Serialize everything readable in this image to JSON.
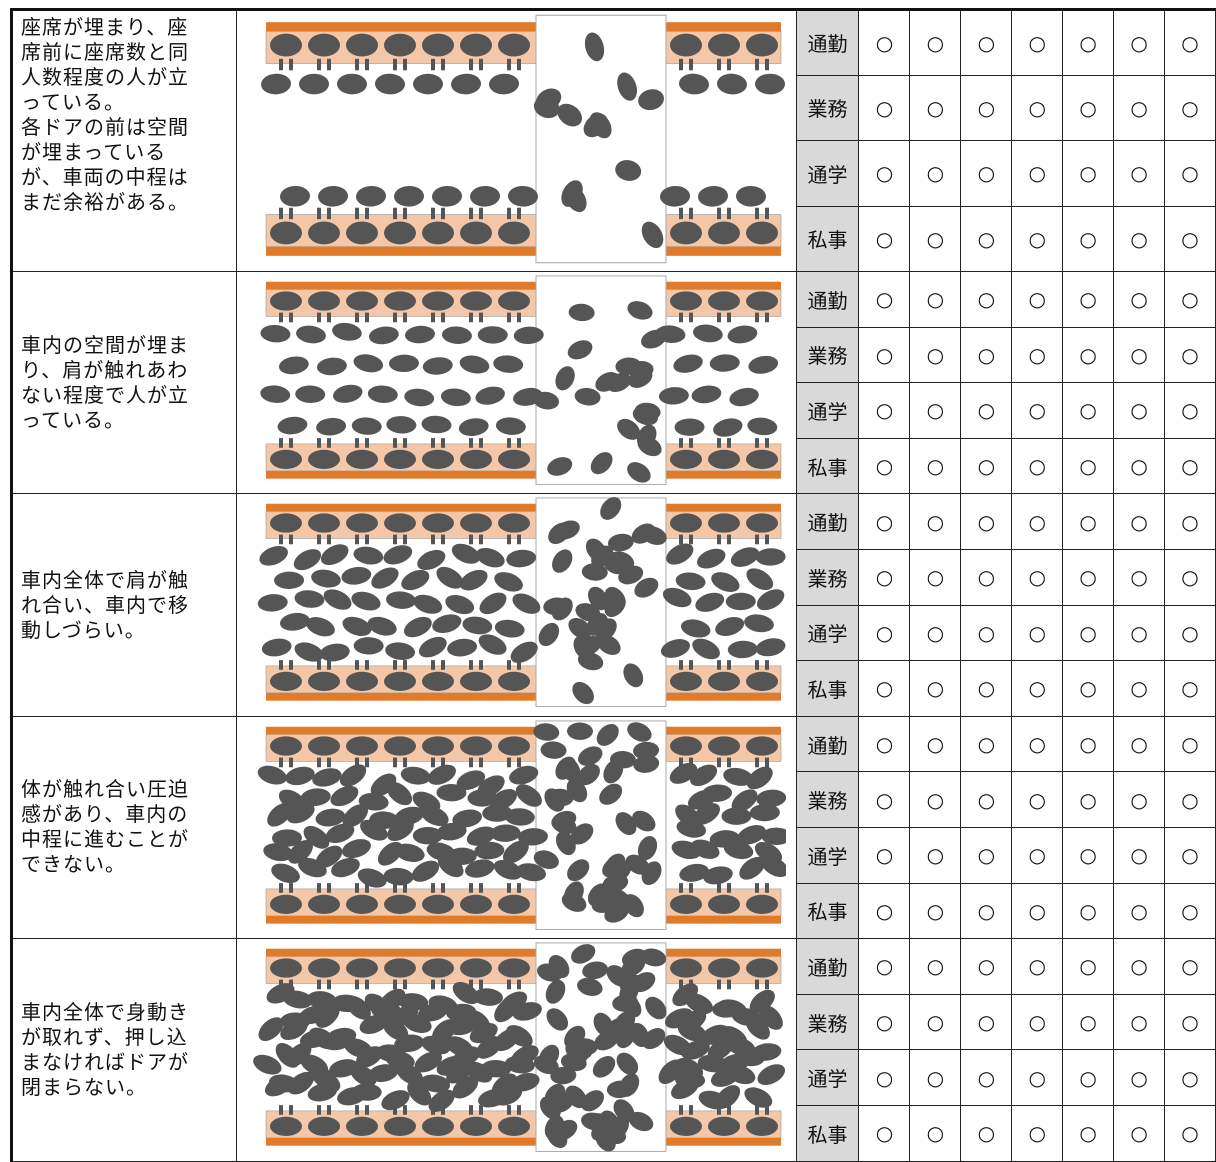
{
  "groups": [
    {
      "lines": [
        "座席が埋まり、座",
        "席前に座席数と同",
        "人数程度の人が立",
        "っている。",
        "各ドアの前は空間",
        "が埋まっている",
        "が、車両の中程は",
        "まだ余裕がある。"
      ],
      "purposes": [
        "通勤",
        "業務",
        "通学",
        "私事"
      ],
      "marks": [
        [
          "○",
          "○",
          "○",
          "○",
          "○",
          "○",
          "○"
        ],
        [
          "○",
          "○",
          "○",
          "○",
          "○",
          "○",
          "○"
        ],
        [
          "○",
          "○",
          "○",
          "○",
          "○",
          "○",
          "○"
        ],
        [
          "○",
          "○",
          "○",
          "○",
          "○",
          "○",
          "○"
        ]
      ]
    },
    {
      "lines": [
        "車内の空間が埋ま",
        "り、肩が触れあわ",
        "ない程度で人が立",
        "っている。"
      ],
      "purposes": [
        "通勤",
        "業務",
        "通学",
        "私事"
      ],
      "marks": [
        [
          "○",
          "○",
          "○",
          "○",
          "○",
          "○",
          "○"
        ],
        [
          "○",
          "○",
          "○",
          "○",
          "○",
          "○",
          "○"
        ],
        [
          "○",
          "○",
          "○",
          "○",
          "○",
          "○",
          "○"
        ],
        [
          "○",
          "○",
          "○",
          "○",
          "○",
          "○",
          "○"
        ]
      ]
    },
    {
      "lines": [
        "車内全体で肩が触",
        "れ合い、車内で移",
        "動しづらい。"
      ],
      "purposes": [
        "通勤",
        "業務",
        "通学",
        "私事"
      ],
      "marks": [
        [
          "○",
          "○",
          "○",
          "○",
          "○",
          "○",
          "○"
        ],
        [
          "○",
          "○",
          "○",
          "○",
          "○",
          "○",
          "○"
        ],
        [
          "○",
          "○",
          "○",
          "○",
          "○",
          "○",
          "○"
        ],
        [
          "○",
          "○",
          "○",
          "○",
          "○",
          "○",
          "○"
        ]
      ]
    },
    {
      "lines": [
        "体が触れ合い圧迫",
        "感があり、車内の",
        "中程に進むことが",
        "できない。"
      ],
      "purposes": [
        "通勤",
        "業務",
        "通学",
        "私事"
      ],
      "marks": [
        [
          "○",
          "○",
          "○",
          "○",
          "○",
          "○",
          "○"
        ],
        [
          "○",
          "○",
          "○",
          "○",
          "○",
          "○",
          "○"
        ],
        [
          "○",
          "○",
          "○",
          "○",
          "○",
          "○",
          "○"
        ],
        [
          "○",
          "○",
          "○",
          "○",
          "○",
          "○",
          "○"
        ]
      ]
    },
    {
      "lines": [
        "車内全体で身動き",
        "が取れず、押し込",
        "まなければドアが",
        "閉まらない。"
      ],
      "purposes": [
        "通勤",
        "業務",
        "通学",
        "私事"
      ],
      "marks": [
        [
          "○",
          "○",
          "○",
          "○",
          "○",
          "○",
          "○"
        ],
        [
          "○",
          "○",
          "○",
          "○",
          "○",
          "○",
          "○"
        ],
        [
          "○",
          "○",
          "○",
          "○",
          "○",
          "○",
          "○"
        ],
        [
          "○",
          "○",
          "○",
          "○",
          "○",
          "○",
          "○"
        ]
      ]
    }
  ]
}
